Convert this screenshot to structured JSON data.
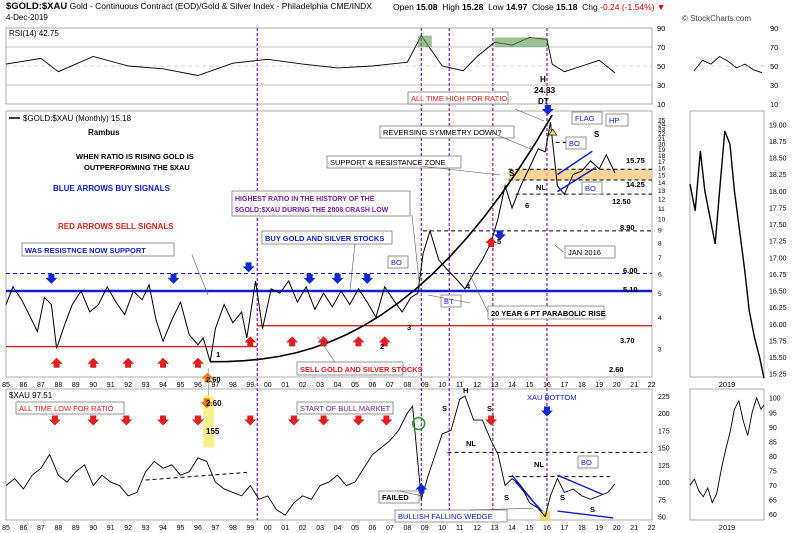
{
  "header": {
    "symbol": "$GOLD:$XAU",
    "description": "Gold - Continuous Contract (EOD)/Gold & Silver Index - Philadelphia CME/INDX",
    "date": "4-Dec-2019",
    "open_label": "Open",
    "open": "15.08",
    "high_label": "High",
    "high": "15.28",
    "low_label": "Low",
    "low": "14.97",
    "close_label": "Close",
    "close": "15.18",
    "chg_label": "Chg",
    "chg": "-0.24 (-1.54%)",
    "brand": "© StockCharts.com"
  },
  "chart_data": [
    {
      "type": "line",
      "panel": "rsi",
      "title": "RSI(14) 42.75",
      "ylim": [
        10,
        90
      ],
      "y_ticks": [
        10,
        30,
        50,
        70,
        90
      ],
      "levels": [
        30,
        70
      ],
      "x": [
        1985.0,
        1987.0,
        1988.0,
        1990.0,
        1992.0,
        1994.0,
        1996.0,
        1998.0,
        2000.0,
        2002.0,
        2004.0,
        2006.0,
        2008.0,
        2008.8,
        2010.0,
        2011.2,
        2012.0,
        2013.0,
        2014.0,
        2015.0,
        2016.0,
        2016.3,
        2017.0,
        2018.0,
        2019.0,
        2019.9
      ],
      "values": [
        52,
        58,
        44,
        60,
        50,
        47,
        40,
        53,
        57,
        52,
        48,
        50,
        54,
        82,
        50,
        45,
        60,
        75,
        72,
        80,
        78,
        52,
        44,
        50,
        56,
        42.75
      ]
    },
    {
      "type": "line",
      "panel": "ratio-monthly",
      "title": "$GOLD:$XAU (Monthly) 15.18",
      "scale": "log",
      "ylim": [
        2.3,
        27
      ],
      "y_ticks": [
        "3",
        "4",
        "5",
        "6",
        "7",
        "8",
        "9",
        "10",
        "11",
        "12",
        "13",
        "14",
        "15",
        "16",
        "17",
        "18",
        "19",
        "20",
        "21",
        "22",
        "23",
        "24",
        "25"
      ],
      "x_ticks": [
        "85",
        "86",
        "87",
        "88",
        "89",
        "90",
        "91",
        "92",
        "93",
        "94",
        "95",
        "96",
        "97",
        "98",
        "99",
        "00",
        "01",
        "02",
        "03",
        "04",
        "05",
        "06",
        "07",
        "08",
        "09",
        "10",
        "11",
        "12",
        "13",
        "14",
        "15",
        "16",
        "17",
        "18",
        "19",
        "20",
        "21",
        "22"
      ],
      "x": [
        1985.0,
        1985.4,
        1985.9,
        1986.4,
        1986.8,
        1987.2,
        1987.6,
        1987.9,
        1988.4,
        1988.8,
        1989.3,
        1989.8,
        1990.3,
        1990.8,
        1991.3,
        1991.8,
        1992.3,
        1992.8,
        1993.2,
        1993.6,
        1994.0,
        1994.5,
        1995.0,
        1995.5,
        1996.0,
        1996.3,
        1996.7,
        1997.0,
        1997.5,
        1998.0,
        1998.5,
        1998.8,
        1999.3,
        1999.7,
        2000.2,
        2000.7,
        2001.2,
        2001.7,
        2002.2,
        2002.7,
        2003.2,
        2003.7,
        2004.2,
        2004.7,
        2005.2,
        2005.7,
        2006.2,
        2006.7,
        2007.2,
        2007.7,
        2008.2,
        2008.6,
        2008.9,
        2009.3,
        2009.8,
        2010.3,
        2010.8,
        2011.3,
        2011.8,
        2012.3,
        2012.8,
        2013.2,
        2013.6,
        2014.0,
        2014.5,
        2015.0,
        2015.5,
        2015.9,
        2016.2,
        2016.6,
        2017.0,
        2017.5,
        2018.0,
        2018.5,
        2019.0,
        2019.4,
        2019.9
      ],
      "values": [
        4.5,
        5.3,
        4.7,
        4.0,
        3.5,
        4.8,
        4.5,
        3.0,
        3.8,
        4.5,
        5.1,
        4.2,
        4.5,
        5.3,
        4.6,
        4.1,
        5.1,
        4.7,
        5.4,
        3.9,
        3.2,
        3.9,
        4.6,
        3.4,
        3.1,
        3.3,
        2.65,
        3.6,
        4.5,
        3.8,
        4.2,
        3.3,
        5.6,
        3.6,
        5.2,
        5.0,
        5.6,
        4.6,
        5.3,
        4.3,
        5.0,
        4.4,
        5.1,
        4.5,
        5.2,
        4.6,
        4.0,
        5.3,
        4.7,
        4.2,
        4.8,
        5.0,
        7.2,
        8.9,
        6.8,
        6.2,
        5.7,
        5.2,
        6.0,
        6.8,
        8.0,
        10.0,
        13.5,
        11.0,
        13.5,
        16.0,
        19.0,
        18.5,
        24.33,
        13.5,
        12.5,
        15.0,
        15.5,
        17.0,
        15.8,
        18.0,
        15.18
      ]
    },
    {
      "type": "line",
      "panel": "ratio-2019",
      "ylim": [
        15.2,
        19.2
      ],
      "y_ticks": [
        "15.25",
        "15.50",
        "15.75",
        "16.00",
        "16.25",
        "16.50",
        "16.75",
        "17.00",
        "17.25",
        "17.50",
        "17.75",
        "18.00",
        "18.25",
        "18.50",
        "18.75",
        "19.00"
      ],
      "x_label": "2019",
      "x": [
        0,
        0.07,
        0.14,
        0.2,
        0.27,
        0.34,
        0.4,
        0.47,
        0.54,
        0.6,
        0.67,
        0.74,
        0.8,
        0.87,
        0.94,
        1.0
      ],
      "values": [
        18.1,
        17.7,
        18.6,
        18.0,
        17.6,
        17.2,
        18.0,
        18.9,
        18.7,
        18.0,
        17.4,
        16.8,
        16.2,
        15.8,
        15.5,
        15.18
      ]
    },
    {
      "type": "line",
      "panel": "xau-weekly",
      "title": "$XAU 97.51",
      "ylim": [
        45,
        235
      ],
      "y_ticks": [
        50,
        75,
        100,
        125,
        150,
        175,
        200,
        225
      ],
      "x_ticks": [
        "85",
        "86",
        "87",
        "88",
        "89",
        "90",
        "91",
        "92",
        "93",
        "94",
        "95",
        "96",
        "97",
        "98",
        "99",
        "00",
        "01",
        "02",
        "03",
        "04",
        "05",
        "06",
        "07",
        "08",
        "09",
        "10",
        "11",
        "12",
        "13",
        "14",
        "15",
        "16",
        "17",
        "18",
        "19",
        "20",
        "21",
        "22"
      ],
      "x": [
        1985.0,
        1985.5,
        1986.0,
        1986.5,
        1987.0,
        1987.5,
        1988.0,
        1988.5,
        1989.0,
        1989.5,
        1990.0,
        1990.5,
        1991.0,
        1991.5,
        1992.0,
        1992.5,
        1993.0,
        1993.5,
        1994.0,
        1994.5,
        1995.0,
        1995.5,
        1996.0,
        1996.5,
        1997.0,
        1997.5,
        1998.0,
        1998.5,
        1999.0,
        1999.5,
        2000.0,
        2000.5,
        2001.0,
        2001.5,
        2002.0,
        2002.5,
        2003.0,
        2003.5,
        2004.0,
        2004.5,
        2005.0,
        2005.5,
        2006.0,
        2006.5,
        2007.0,
        2007.5,
        2008.0,
        2008.3,
        2008.8,
        2009.2,
        2009.6,
        2010.0,
        2010.5,
        2011.0,
        2011.3,
        2011.8,
        2012.3,
        2012.8,
        2013.2,
        2013.6,
        2014.0,
        2014.5,
        2015.0,
        2015.5,
        2015.9,
        2016.2,
        2016.6,
        2017.0,
        2017.5,
        2018.0,
        2018.5,
        2019.0,
        2019.5,
        2019.9
      ],
      "values": [
        95,
        105,
        90,
        110,
        120,
        140,
        110,
        100,
        115,
        125,
        95,
        110,
        100,
        95,
        80,
        85,
        115,
        130,
        120,
        125,
        110,
        115,
        135,
        130,
        100,
        90,
        85,
        80,
        95,
        75,
        80,
        60,
        52,
        70,
        80,
        75,
        95,
        100,
        110,
        95,
        100,
        120,
        140,
        150,
        160,
        175,
        200,
        210,
        75,
        110,
        140,
        170,
        175,
        220,
        225,
        190,
        190,
        160,
        140,
        95,
        105,
        95,
        70,
        62,
        50,
        80,
        105,
        85,
        90,
        80,
        75,
        80,
        85,
        97.51
      ]
    },
    {
      "type": "line",
      "panel": "xau-2019",
      "ylim": [
        58,
        103
      ],
      "y_ticks": [
        "60",
        "65",
        "70",
        "75",
        "80",
        "85",
        "90",
        "95",
        "100"
      ],
      "x_label": "2019",
      "x": [
        0,
        0.06,
        0.12,
        0.18,
        0.24,
        0.3,
        0.36,
        0.42,
        0.48,
        0.54,
        0.6,
        0.66,
        0.72,
        0.78,
        0.84,
        0.9,
        0.96,
        1.0
      ],
      "values": [
        70,
        72,
        68,
        66,
        69,
        64,
        67,
        75,
        82,
        88,
        96,
        99,
        92,
        87,
        95,
        100,
        96,
        97.51
      ]
    }
  ],
  "annotations": {
    "rambus": "Rambus",
    "ratio_note_1": "WHEN RATIO IS RISING GOLD IS",
    "ratio_note_2": "OUTPERFORMING THE $XAU",
    "blue_arrows": "BLUE ARROWS BUY SIGNALS",
    "red_arrows": "RED ARROWS SELL SIGNALS",
    "resistance_support": "WAS RESISTNCE NOW SUPPORT",
    "buy_stocks": "BUY GOLD AND SILVER STOCKS",
    "sell_stocks": "SELL GOLD AND SILVER STOCKS",
    "highest_1": "HIGHEST RATIO IN THE HISTORY OF THE",
    "highest_2": "$GOLD:$XAU DURING THE 2008 CRASH LOW",
    "ath": "ALL TIME HIGH FOR RATIO",
    "reversing": "REVERSING SYMMETRY DOWN?",
    "sr_zone": "SUPPORT & RESISTANCE ZONE",
    "parabolic": "20 YEAR 6 PT  PARABOLIC RISE",
    "jan2016": "JAN 2016",
    "flag": "FLAG",
    "hp": "HP",
    "h": "H",
    "peak_value": "24.33",
    "dt": "DT",
    "bo": "BO",
    "bt": "BT",
    "s": "S",
    "nl": "NL",
    "lvl_1575": "15.75",
    "lvl_1425": "14.25",
    "lvl_1250": "12.50",
    "lvl_890": "8.90",
    "lvl_600": "6.00",
    "lvl_510": "5.10",
    "lvl_370": "3.70",
    "lvl_260": "2.60",
    "low_260": "2.60",
    "low_155": "155",
    "pt_1": "1",
    "pt_2": "2",
    "pt_3": "3",
    "pt_4": "4",
    "pt_5": "5",
    "pt_6": "6",
    "atl": "ALL TIME LOW FOR RATIO",
    "bull_start": "START OF BULL MARKET",
    "failed": "FAILED",
    "bfw": "BULLISH FALLING WEDGE",
    "xau_bottom": "XAU BOTTOM",
    "year_2019": "2019"
  }
}
